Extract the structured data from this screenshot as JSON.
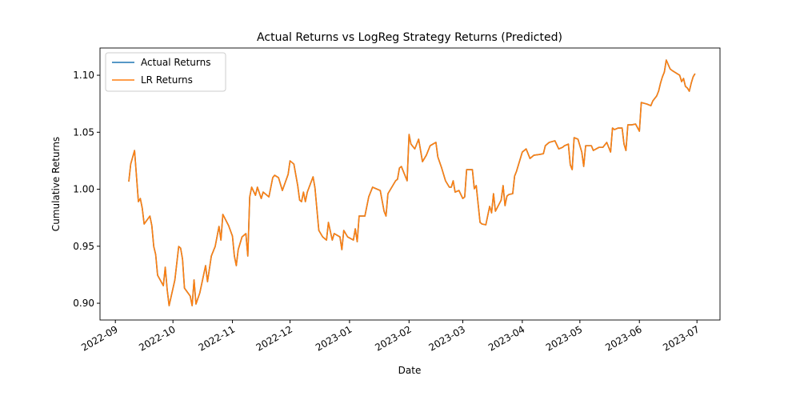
{
  "chart_data": {
    "type": "line",
    "title": "Actual Returns vs LogReg Strategy Returns (Predicted)",
    "xlabel": "Date",
    "ylabel": "Cumulative Returns",
    "legend": "upper left",
    "grid": false,
    "xlim": [
      "2022-08-24",
      "2023-07-13"
    ],
    "xticks": [
      {
        "value": "2022-09-01",
        "label": "2022-09"
      },
      {
        "value": "2022-10-01",
        "label": "2022-10"
      },
      {
        "value": "2022-11-01",
        "label": "2022-11"
      },
      {
        "value": "2022-12-01",
        "label": "2022-12"
      },
      {
        "value": "2023-01-01",
        "label": "2023-01"
      },
      {
        "value": "2023-02-01",
        "label": "2023-02"
      },
      {
        "value": "2023-03-01",
        "label": "2023-03"
      },
      {
        "value": "2023-04-01",
        "label": "2023-04"
      },
      {
        "value": "2023-05-01",
        "label": "2023-05"
      },
      {
        "value": "2023-06-01",
        "label": "2023-06"
      },
      {
        "value": "2023-07-01",
        "label": "2023-07"
      }
    ],
    "ylim": [
      0.8853,
      1.1239
    ],
    "yticks": [
      {
        "value": 0.9,
        "label": "0.90"
      },
      {
        "value": 0.95,
        "label": "0.95"
      },
      {
        "value": 1.0,
        "label": "1.00"
      },
      {
        "value": 1.05,
        "label": "1.05"
      },
      {
        "value": 1.1,
        "label": "1.10"
      }
    ],
    "x": [
      "2022-09-08",
      "2022-09-09",
      "2022-09-11",
      "2022-09-13",
      "2022-09-14",
      "2022-09-15",
      "2022-09-16",
      "2022-09-19",
      "2022-09-20",
      "2022-09-21",
      "2022-09-22",
      "2022-09-23",
      "2022-09-26",
      "2022-09-27",
      "2022-09-28",
      "2022-09-29",
      "2022-10-02",
      "2022-10-04",
      "2022-10-05",
      "2022-10-06",
      "2022-10-07",
      "2022-10-10",
      "2022-10-11",
      "2022-10-12",
      "2022-10-13",
      "2022-10-15",
      "2022-10-18",
      "2022-10-19",
      "2022-10-21",
      "2022-10-23",
      "2022-10-25",
      "2022-10-26",
      "2022-10-27",
      "2022-10-30",
      "2022-11-01",
      "2022-11-02",
      "2022-11-03",
      "2022-11-04",
      "2022-11-06",
      "2022-11-08",
      "2022-11-09",
      "2022-11-10",
      "2022-11-11",
      "2022-11-13",
      "2022-11-14",
      "2022-11-16",
      "2022-11-17",
      "2022-11-20",
      "2022-11-22",
      "2022-11-23",
      "2022-11-25",
      "2022-11-27",
      "2022-11-30",
      "2022-12-01",
      "2022-12-03",
      "2022-12-05",
      "2022-12-06",
      "2022-12-07",
      "2022-12-08",
      "2022-12-09",
      "2022-12-10",
      "2022-12-13",
      "2022-12-14",
      "2022-12-16",
      "2022-12-18",
      "2022-12-20",
      "2022-12-21",
      "2022-12-23",
      "2022-12-24",
      "2022-12-27",
      "2022-12-28",
      "2022-12-29",
      "2022-12-31",
      "2023-01-03",
      "2023-01-04",
      "2023-01-05",
      "2023-01-06",
      "2023-01-09",
      "2023-01-11",
      "2023-01-13",
      "2023-01-17",
      "2023-01-19",
      "2023-01-20",
      "2023-01-21",
      "2023-01-25",
      "2023-01-26",
      "2023-01-27",
      "2023-01-28",
      "2023-01-31",
      "2023-02-01",
      "2023-02-02",
      "2023-02-04",
      "2023-02-06",
      "2023-02-08",
      "2023-02-10",
      "2023-02-12",
      "2023-02-15",
      "2023-02-16",
      "2023-02-18",
      "2023-02-20",
      "2023-02-22",
      "2023-02-23",
      "2023-02-24",
      "2023-02-25",
      "2023-02-27",
      "2023-03-01",
      "2023-03-02",
      "2023-03-03",
      "2023-03-06",
      "2023-03-07",
      "2023-03-08",
      "2023-03-10",
      "2023-03-11",
      "2023-03-13",
      "2023-03-15",
      "2023-03-16",
      "2023-03-17",
      "2023-03-18",
      "2023-03-21",
      "2023-03-22",
      "2023-03-23",
      "2023-03-24",
      "2023-03-25",
      "2023-03-27",
      "2023-03-28",
      "2023-03-29",
      "2023-04-01",
      "2023-04-03",
      "2023-04-05",
      "2023-04-07",
      "2023-04-10",
      "2023-04-12",
      "2023-04-13",
      "2023-04-15",
      "2023-04-18",
      "2023-04-20",
      "2023-04-22",
      "2023-04-23",
      "2023-04-25",
      "2023-04-26",
      "2023-04-27",
      "2023-04-28",
      "2023-04-30",
      "2023-05-02",
      "2023-05-03",
      "2023-05-04",
      "2023-05-07",
      "2023-05-08",
      "2023-05-11",
      "2023-05-13",
      "2023-05-15",
      "2023-05-17",
      "2023-05-18",
      "2023-05-19",
      "2023-05-21",
      "2023-05-23",
      "2023-05-24",
      "2023-05-25",
      "2023-05-26",
      "2023-05-28",
      "2023-05-30",
      "2023-06-01",
      "2023-06-02",
      "2023-06-05",
      "2023-06-07",
      "2023-06-08",
      "2023-06-10",
      "2023-06-11",
      "2023-06-12",
      "2023-06-13",
      "2023-06-14",
      "2023-06-15",
      "2023-06-17",
      "2023-06-18",
      "2023-06-22",
      "2023-06-23",
      "2023-06-24",
      "2023-06-25",
      "2023-06-26",
      "2023-06-27",
      "2023-06-28",
      "2023-06-29",
      "2023-06-30"
    ],
    "series": [
      {
        "name": "Actual Returns",
        "color": "#1f77b4",
        "values": [
          1.0067,
          1.0221,
          1.034,
          0.9891,
          0.9919,
          0.9835,
          0.9695,
          0.9765,
          0.9681,
          0.9498,
          0.9428,
          0.9246,
          0.9154,
          0.9316,
          0.9119,
          0.8979,
          0.9204,
          0.9498,
          0.9484,
          0.9386,
          0.9133,
          0.9063,
          0.8979,
          0.9204,
          0.8993,
          0.9091,
          0.933,
          0.9189,
          0.9414,
          0.9498,
          0.9674,
          0.9554,
          0.9779,
          0.9681,
          0.9589,
          0.9414,
          0.933,
          0.947,
          0.9582,
          0.9611,
          0.9414,
          0.9933,
          1.0018,
          0.9947,
          1.0018,
          0.9919,
          0.9975,
          0.9933,
          1.0102,
          1.0123,
          1.0102,
          0.9989,
          1.013,
          1.0249,
          1.0221,
          1.0032,
          0.9905,
          0.9891,
          0.9975,
          0.9891,
          0.9975,
          1.0109,
          1.0011,
          0.9639,
          0.9582,
          0.9554,
          0.9709,
          0.9554,
          0.9611,
          0.9582,
          0.947,
          0.9639,
          0.9582,
          0.9554,
          0.9653,
          0.954,
          0.9765,
          0.9765,
          0.9933,
          1.0018,
          0.9989,
          0.9807,
          0.9765,
          0.9961,
          1.0074,
          1.0088,
          1.0186,
          1.02,
          1.0074,
          1.0481,
          1.0396,
          1.0354,
          1.0439,
          1.0242,
          1.0298,
          1.0382,
          1.0411,
          1.0284,
          1.0186,
          1.0074,
          1.0018,
          1.0018,
          1.0074,
          0.9975,
          0.9989,
          0.9919,
          0.9933,
          1.0172,
          1.0172,
          1.0004,
          1.0032,
          0.9709,
          0.9695,
          0.9688,
          0.9849,
          0.9793,
          0.9961,
          0.9807,
          0.9905,
          1.0032,
          0.9856,
          0.994,
          0.9954,
          0.9961,
          1.0116,
          1.0158,
          1.0326,
          1.0354,
          1.027,
          1.0298,
          1.0305,
          1.0312,
          1.0382,
          1.0411,
          1.0425,
          1.0354,
          1.0368,
          1.0382,
          1.0396,
          1.0214,
          1.0172,
          1.0453,
          1.0439,
          1.0326,
          1.02,
          1.0382,
          1.0382,
          1.034,
          1.0368,
          1.0368,
          1.0411,
          1.0326,
          1.0537,
          1.0523,
          1.0537,
          1.0537,
          1.0396,
          1.034,
          1.0565,
          1.0565,
          1.0572,
          1.0509,
          1.0761,
          1.0747,
          1.0733,
          1.0775,
          1.0818,
          1.086,
          1.093,
          1.0986,
          1.1028,
          1.1133,
          1.1056,
          1.1042,
          1.1,
          1.0944,
          1.0972,
          1.0902,
          1.0888,
          1.086,
          1.093,
          1.0986,
          1.1014
        ]
      },
      {
        "name": "LR Returns",
        "color": "#ff7f0e",
        "values": [
          1.0067,
          1.0221,
          1.034,
          0.9891,
          0.9919,
          0.9835,
          0.9695,
          0.9765,
          0.9681,
          0.9498,
          0.9428,
          0.9246,
          0.9154,
          0.9316,
          0.9119,
          0.8979,
          0.9204,
          0.9498,
          0.9484,
          0.9386,
          0.9133,
          0.9063,
          0.8979,
          0.9204,
          0.8993,
          0.9091,
          0.933,
          0.9189,
          0.9414,
          0.9498,
          0.9674,
          0.9554,
          0.9779,
          0.9681,
          0.9589,
          0.9414,
          0.933,
          0.947,
          0.9582,
          0.9611,
          0.9414,
          0.9933,
          1.0018,
          0.9947,
          1.0018,
          0.9919,
          0.9975,
          0.9933,
          1.0102,
          1.0123,
          1.0102,
          0.9989,
          1.013,
          1.0249,
          1.0221,
          1.0032,
          0.9905,
          0.9891,
          0.9975,
          0.9891,
          0.9975,
          1.0109,
          1.0011,
          0.9639,
          0.9582,
          0.9554,
          0.9709,
          0.9554,
          0.9611,
          0.9582,
          0.947,
          0.9639,
          0.9582,
          0.9554,
          0.9653,
          0.954,
          0.9765,
          0.9765,
          0.9933,
          1.0018,
          0.9989,
          0.9807,
          0.9765,
          0.9961,
          1.0074,
          1.0088,
          1.0186,
          1.02,
          1.0074,
          1.0481,
          1.0396,
          1.0354,
          1.0439,
          1.0242,
          1.0298,
          1.0382,
          1.0411,
          1.0284,
          1.0186,
          1.0074,
          1.0018,
          1.0018,
          1.0074,
          0.9975,
          0.9989,
          0.9919,
          0.9933,
          1.0172,
          1.0172,
          1.0004,
          1.0032,
          0.9709,
          0.9695,
          0.9688,
          0.9849,
          0.9793,
          0.9961,
          0.9807,
          0.9905,
          1.0032,
          0.9856,
          0.994,
          0.9954,
          0.9961,
          1.0116,
          1.0158,
          1.0326,
          1.0354,
          1.027,
          1.0298,
          1.0305,
          1.0312,
          1.0382,
          1.0411,
          1.0425,
          1.0354,
          1.0368,
          1.0382,
          1.0396,
          1.0214,
          1.0172,
          1.0453,
          1.0439,
          1.0326,
          1.02,
          1.0382,
          1.0382,
          1.034,
          1.0368,
          1.0368,
          1.0411,
          1.0326,
          1.0537,
          1.0523,
          1.0537,
          1.0537,
          1.0396,
          1.034,
          1.0565,
          1.0565,
          1.0572,
          1.0509,
          1.0761,
          1.0747,
          1.0733,
          1.0775,
          1.0818,
          1.086,
          1.093,
          1.0986,
          1.1028,
          1.1133,
          1.1056,
          1.1042,
          1.1,
          1.0944,
          1.0972,
          1.0902,
          1.0888,
          1.086,
          1.093,
          1.0986,
          1.1014
        ]
      }
    ]
  }
}
